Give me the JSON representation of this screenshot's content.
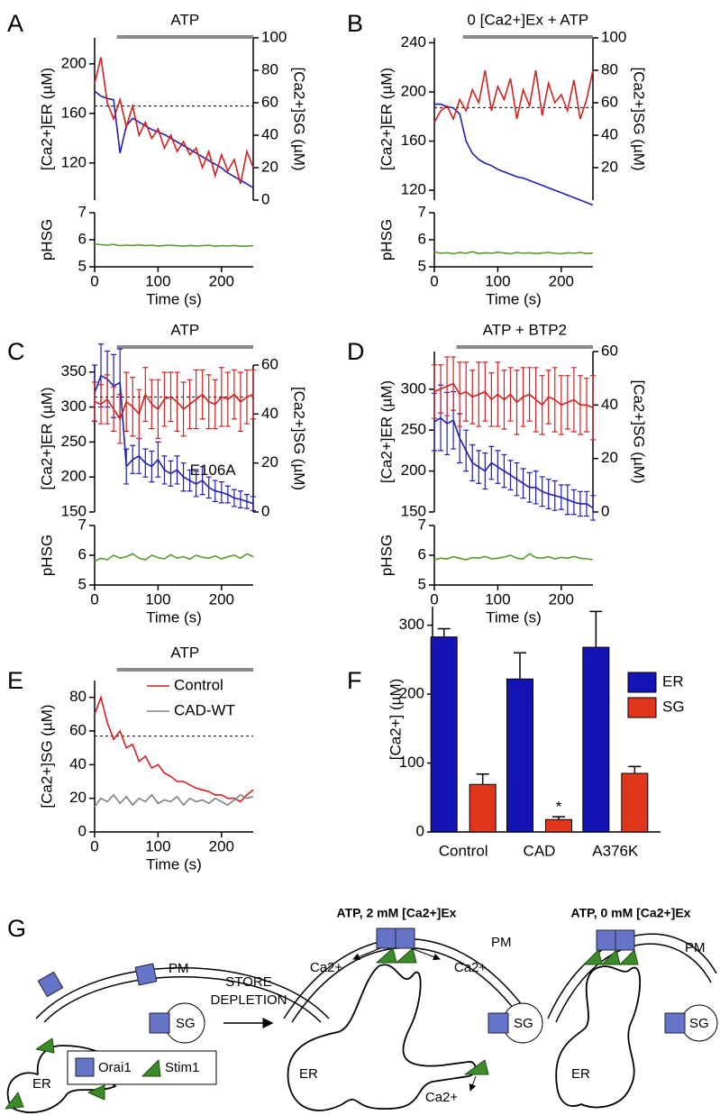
{
  "chart_data": [
    {
      "type": "line",
      "panel": "A",
      "stimulus": {
        "label": "ATP",
        "x": [
          35,
          250
        ]
      },
      "x": [
        0,
        10,
        20,
        30,
        40,
        50,
        60,
        70,
        80,
        90,
        100,
        110,
        120,
        130,
        140,
        150,
        160,
        170,
        180,
        190,
        200,
        210,
        220,
        230,
        240,
        250
      ],
      "xlim": [
        0,
        250
      ],
      "ylabel": "[Ca2+]ER (µM)",
      "ylim": [
        90,
        221
      ],
      "yticks": [
        120,
        160,
        200
      ],
      "y2label": "[Ca2+]SG (µM)",
      "y2lim": [
        0,
        100
      ],
      "y2ticks": [
        0,
        20,
        40,
        60,
        80,
        100
      ],
      "reference": {
        "value": 58,
        "axis": "y2"
      },
      "series": [
        {
          "color": "#1f1fb4",
          "values": [
            178,
            174,
            172,
            171,
            128,
            150,
            156,
            153,
            150,
            147,
            145,
            143,
            140,
            137,
            134,
            131,
            128,
            125,
            122,
            119,
            116,
            112,
            109,
            106,
            103,
            100
          ]
        },
        {
          "color": "#d42020",
          "axis": "y2",
          "values": [
            72,
            88,
            60,
            50,
            62,
            45,
            58,
            40,
            48,
            38,
            44,
            32,
            40,
            30,
            36,
            28,
            32,
            20,
            30,
            15,
            28,
            18,
            25,
            10,
            30,
            20
          ]
        }
      ]
    },
    {
      "type": "line",
      "x": [
        0,
        10,
        20,
        30,
        40,
        50,
        60,
        70,
        80,
        90,
        100,
        110,
        120,
        130,
        140,
        150,
        160,
        170,
        180,
        190,
        200,
        210,
        220,
        230,
        240,
        250
      ],
      "xlim": [
        0,
        250
      ],
      "xticks": [
        0,
        100,
        200
      ],
      "xlabel": "Time (s)",
      "ylabel": "pHSG",
      "ylim": [
        5,
        7
      ],
      "yticks": [
        5,
        6,
        7
      ],
      "series": [
        {
          "color": "#5a9a2e",
          "values": [
            5.85,
            5.82,
            5.8,
            5.83,
            5.78,
            5.8,
            5.79,
            5.81,
            5.78,
            5.8,
            5.77,
            5.79,
            5.8,
            5.78,
            5.76,
            5.79,
            5.77,
            5.78,
            5.8,
            5.76,
            5.78,
            5.77,
            5.79,
            5.76,
            5.77,
            5.78
          ]
        }
      ]
    },
    {
      "type": "line",
      "panel": "B",
      "stimulus": {
        "label": "0 [Ca2+]Ex + ATP",
        "x": [
          45,
          250
        ]
      },
      "x": [
        0,
        10,
        20,
        30,
        40,
        50,
        60,
        70,
        80,
        90,
        100,
        110,
        120,
        130,
        140,
        150,
        160,
        170,
        180,
        190,
        200,
        210,
        220,
        230,
        240,
        250
      ],
      "xlim": [
        0,
        250
      ],
      "ylabel": "[Ca2+]ER (µM)",
      "ylim": [
        112,
        244
      ],
      "yticks": [
        120,
        160,
        200,
        240
      ],
      "y2label": "[Ca2+]SG (µM)",
      "y2lim": [
        0,
        100
      ],
      "y2ticks": [
        20,
        40,
        60,
        80,
        100
      ],
      "reference": {
        "value": 57,
        "axis": "y2"
      },
      "series": [
        {
          "color": "#1f1fb4",
          "values": [
            190,
            190,
            188,
            187,
            182,
            160,
            150,
            145,
            142,
            140,
            137,
            135,
            133,
            131,
            130,
            128,
            126,
            124,
            122,
            120,
            118,
            116,
            114,
            112,
            110,
            108
          ]
        },
        {
          "color": "#d42020",
          "axis": "y2",
          "values": [
            48,
            55,
            58,
            50,
            62,
            55,
            68,
            60,
            80,
            55,
            70,
            62,
            75,
            50,
            68,
            58,
            80,
            52,
            72,
            60,
            65,
            55,
            74,
            50,
            62,
            80
          ]
        }
      ]
    },
    {
      "type": "line",
      "x": [
        0,
        10,
        20,
        30,
        40,
        50,
        60,
        70,
        80,
        90,
        100,
        110,
        120,
        130,
        140,
        150,
        160,
        170,
        180,
        190,
        200,
        210,
        220,
        230,
        240,
        250
      ],
      "xlim": [
        0,
        250
      ],
      "xticks": [
        0,
        100,
        200
      ],
      "xlabel": "Time (s)",
      "ylabel": "pHSG",
      "ylim": [
        5,
        7
      ],
      "yticks": [
        5,
        6,
        7
      ],
      "series": [
        {
          "color": "#5a9a2e",
          "values": [
            5.55,
            5.5,
            5.52,
            5.48,
            5.53,
            5.5,
            5.56,
            5.49,
            5.52,
            5.5,
            5.54,
            5.51,
            5.48,
            5.53,
            5.5,
            5.52,
            5.49,
            5.51,
            5.53,
            5.5,
            5.48,
            5.52,
            5.5,
            5.53,
            5.49,
            5.51
          ]
        }
      ]
    },
    {
      "type": "line",
      "panel": "C",
      "stimulus": {
        "label": "ATP",
        "x": [
          35,
          250
        ]
      },
      "annotation": "E106A",
      "x": [
        0,
        10,
        20,
        30,
        40,
        50,
        60,
        70,
        80,
        90,
        100,
        110,
        120,
        130,
        140,
        150,
        160,
        170,
        180,
        190,
        200,
        210,
        220,
        230,
        240,
        250
      ],
      "xlim": [
        0,
        250
      ],
      "ylabel": "[Ca2+]ER (µM)",
      "ylim": [
        150,
        360
      ],
      "yticks": [
        150,
        200,
        250,
        300,
        350
      ],
      "y2label": "[Ca2+]SG (µM)",
      "y2lim": [
        0,
        60
      ],
      "y2ticks": [
        0,
        20,
        40,
        60
      ],
      "reference": {
        "value": 47,
        "axis": "y2"
      },
      "series": [
        {
          "color": "#1f1fb4",
          "values": [
            320,
            345,
            340,
            330,
            335,
            215,
            225,
            230,
            220,
            215,
            225,
            210,
            205,
            210,
            200,
            195,
            190,
            195,
            185,
            180,
            178,
            175,
            170,
            168,
            165,
            162
          ],
          "errors": [
            40,
            45,
            40,
            45,
            48,
            25,
            20,
            25,
            20,
            22,
            25,
            20,
            18,
            20,
            20,
            15,
            18,
            20,
            15,
            15,
            15,
            12,
            12,
            12,
            10,
            10
          ]
        },
        {
          "color": "#d42020",
          "axis": "y2",
          "values": [
            45,
            44,
            46,
            42,
            38,
            45,
            43,
            40,
            48,
            44,
            42,
            46,
            47,
            45,
            42,
            44,
            46,
            48,
            45,
            44,
            47,
            46,
            48,
            45,
            47,
            48
          ],
          "errors": [
            8,
            8,
            10,
            9,
            10,
            12,
            12,
            10,
            11,
            10,
            12,
            11,
            10,
            12,
            11,
            10,
            12,
            10,
            11,
            10,
            12,
            11,
            10,
            12,
            11,
            10
          ]
        }
      ]
    },
    {
      "type": "line",
      "x": [
        0,
        10,
        20,
        30,
        40,
        50,
        60,
        70,
        80,
        90,
        100,
        110,
        120,
        130,
        140,
        150,
        160,
        170,
        180,
        190,
        200,
        210,
        220,
        230,
        240,
        250
      ],
      "xlim": [
        0,
        250
      ],
      "xticks": [
        0,
        100,
        200
      ],
      "xlabel": "Time (s)",
      "ylabel": "pHSG",
      "ylim": [
        5,
        7
      ],
      "yticks": [
        5,
        6,
        7
      ],
      "series": [
        {
          "color": "#5a9a2e",
          "values": [
            5.8,
            5.9,
            5.85,
            6.0,
            5.9,
            5.95,
            6.05,
            5.9,
            5.85,
            6.0,
            5.92,
            5.88,
            6.02,
            5.9,
            5.95,
            5.87,
            6.0,
            5.93,
            5.9,
            5.98,
            5.88,
            5.95,
            6.0,
            5.9,
            6.05,
            5.95
          ]
        }
      ]
    },
    {
      "type": "line",
      "panel": "D",
      "stimulus": {
        "label": "ATP + BTP2",
        "x": [
          35,
          250
        ]
      },
      "x": [
        0,
        10,
        20,
        30,
        40,
        50,
        60,
        70,
        80,
        90,
        100,
        110,
        120,
        130,
        140,
        150,
        160,
        170,
        180,
        190,
        200,
        210,
        220,
        230,
        240,
        250
      ],
      "xlim": [
        0,
        250
      ],
      "ylabel": "[Ca2+]ER (µM)",
      "ylim": [
        150,
        346
      ],
      "yticks": [
        150,
        200,
        250,
        300
      ],
      "y2label": "[Ca2+]SG (µM)",
      "y2lim": [
        0,
        60
      ],
      "y2ticks": [
        0,
        20,
        40,
        60
      ],
      "series": [
        {
          "color": "#1f1fb4",
          "values": [
            260,
            265,
            258,
            262,
            240,
            225,
            210,
            205,
            200,
            210,
            205,
            200,
            195,
            190,
            185,
            180,
            180,
            175,
            172,
            170,
            168,
            165,
            162,
            160,
            160,
            155
          ],
          "errors": [
            35,
            40,
            38,
            35,
            30,
            25,
            22,
            20,
            22,
            20,
            20,
            20,
            18,
            20,
            18,
            18,
            20,
            18,
            18,
            18,
            15,
            18,
            15,
            15,
            15,
            15
          ]
        },
        {
          "color": "#d42020",
          "axis": "y2",
          "values": [
            45,
            46,
            47,
            48,
            44,
            45,
            43,
            44,
            45,
            42,
            44,
            42,
            44,
            41,
            43,
            44,
            42,
            40,
            43,
            42,
            40,
            41,
            42,
            40,
            40,
            39
          ],
          "errors": [
            10,
            9,
            11,
            10,
            12,
            11,
            10,
            12,
            11,
            10,
            12,
            11,
            10,
            12,
            11,
            10,
            12,
            11,
            10,
            12,
            11,
            10,
            12,
            11,
            10,
            12
          ]
        }
      ]
    },
    {
      "type": "line",
      "x": [
        0,
        10,
        20,
        30,
        40,
        50,
        60,
        70,
        80,
        90,
        100,
        110,
        120,
        130,
        140,
        150,
        160,
        170,
        180,
        190,
        200,
        210,
        220,
        230,
        240,
        250
      ],
      "xlim": [
        0,
        250
      ],
      "xticks": [
        0,
        100,
        200
      ],
      "xlabel": "Time (s)",
      "ylabel": "pHSG",
      "ylim": [
        5,
        7
      ],
      "yticks": [
        5,
        6,
        7
      ],
      "series": [
        {
          "color": "#5a9a2e",
          "values": [
            5.85,
            5.9,
            5.88,
            5.95,
            5.9,
            5.85,
            5.92,
            5.9,
            5.96,
            5.88,
            5.9,
            5.94,
            6.0,
            5.9,
            5.88,
            6.05,
            5.92,
            5.9,
            5.95,
            5.88,
            5.93,
            5.9,
            5.96,
            5.9,
            5.88,
            5.85
          ]
        }
      ]
    },
    {
      "type": "line",
      "panel": "E",
      "stimulus": {
        "label": "ATP",
        "x": [
          35,
          250
        ]
      },
      "legend": "upper right",
      "x": [
        0,
        10,
        20,
        30,
        40,
        50,
        60,
        70,
        80,
        90,
        100,
        110,
        120,
        130,
        140,
        150,
        160,
        170,
        180,
        190,
        200,
        210,
        220,
        230,
        240,
        250
      ],
      "xlim": [
        0,
        250
      ],
      "xticks": [
        0,
        100,
        200
      ],
      "xlabel": "Time (s)",
      "ylabel": "[Ca2+]SG (µM)",
      "ylim": [
        0,
        90
      ],
      "yticks": [
        0,
        20,
        40,
        60,
        80
      ],
      "reference": {
        "value": 57,
        "axis": "y"
      },
      "series": [
        {
          "name": "Control",
          "color": "#d42020",
          "values": [
            70,
            80,
            65,
            55,
            60,
            50,
            52,
            42,
            45,
            38,
            40,
            35,
            33,
            30,
            30,
            28,
            26,
            25,
            24,
            22,
            22,
            20,
            20,
            18,
            22,
            25
          ]
        },
        {
          "name": "CAD-WT",
          "color": "#808080",
          "values": [
            15,
            20,
            18,
            22,
            17,
            21,
            16,
            20,
            18,
            22,
            17,
            19,
            18,
            21,
            16,
            20,
            18,
            19,
            17,
            20,
            18,
            16,
            19,
            22,
            20,
            21
          ]
        }
      ]
    },
    {
      "type": "bar",
      "panel": "F",
      "legend": "upper right",
      "annotation": "*",
      "categories": [
        "Control",
        "CAD",
        "A376K"
      ],
      "ylabel": "[Ca2+] (µM)",
      "ylim": [
        0,
        327
      ],
      "yticks": [
        0,
        100,
        200,
        300
      ],
      "series": [
        {
          "name": "ER",
          "color": "#1414b4",
          "values": [
            283,
            222,
            268
          ],
          "errors": [
            12,
            38,
            52
          ]
        },
        {
          "name": "SG",
          "color": "#e0361c",
          "values": [
            69,
            18,
            85
          ],
          "errors": [
            15,
            4,
            10
          ]
        }
      ]
    }
  ],
  "diagram": {
    "panel": "G",
    "resting": {
      "pm": "PM",
      "er": "ER",
      "sg": "SG"
    },
    "transition": [
      "STORE",
      "DEPLETION"
    ],
    "legend": [
      "Orai1",
      "Stim1"
    ],
    "states": [
      {
        "title": "ATP, 2 mM [Ca2+]Ex",
        "pm": "PM",
        "er": "ER",
        "sg": "SG",
        "flux": [
          "Ca2+",
          "Ca2+",
          "Ca2+"
        ]
      },
      {
        "title": "ATP, 0 mM [Ca2+]Ex",
        "pm": "PM",
        "er": "ER",
        "sg": "SG"
      }
    ]
  }
}
